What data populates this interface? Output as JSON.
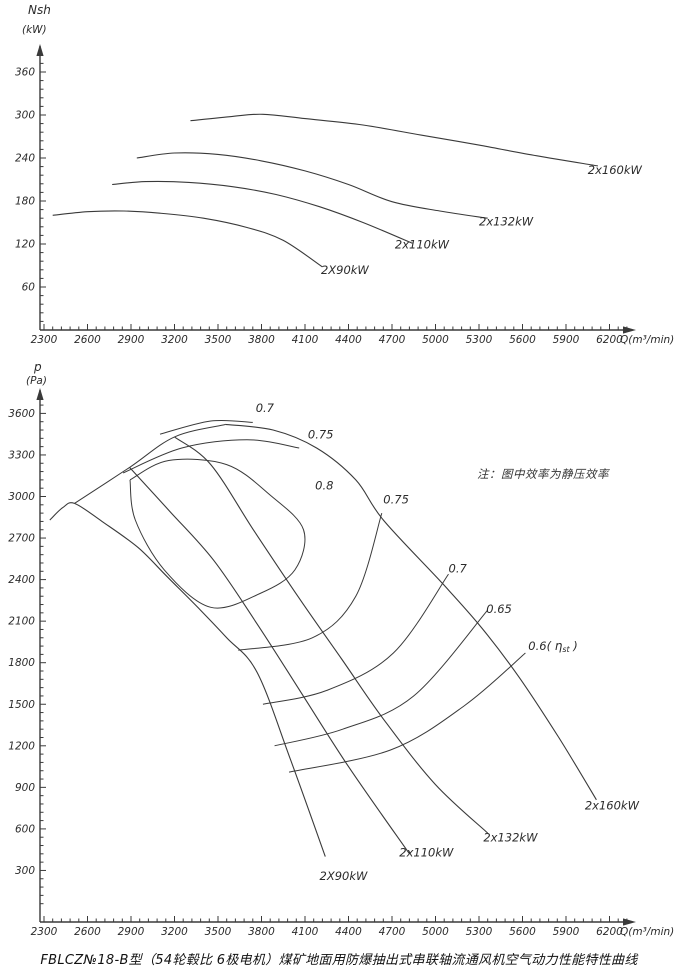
{
  "figure": {
    "caption": "FBLCZ№18-B型（54轮毂比 6极电机）煤矿地面用防爆抽出式串联轴流通风机空气动力性能特性曲线",
    "note": "注：图中效率为静压效率"
  },
  "chart_data": [
    {
      "type": "line",
      "title": "",
      "xlabel": "Q(m³/min)",
      "ylabel": "Nsh",
      "ylabel_units": "(kW)",
      "xlim": [
        2300,
        6430
      ],
      "ylim": [
        0,
        395
      ],
      "grid": false,
      "x_ticks": [
        2300,
        2600,
        2900,
        3200,
        3500,
        3800,
        4100,
        4400,
        4700,
        5000,
        5300,
        5600,
        5900,
        6200
      ],
      "x_minor_step": 60,
      "y_ticks": [
        60,
        120,
        180,
        240,
        300,
        360
      ],
      "y_minor_step": 12,
      "series": [
        {
          "name": "2X90kW",
          "label_at": [
            4210,
            78
          ],
          "points": [
            [
              2360,
              160
            ],
            [
              2600,
              165
            ],
            [
              2850,
              166
            ],
            [
              3100,
              163
            ],
            [
              3400,
              156
            ],
            [
              3700,
              143
            ],
            [
              3950,
              125
            ],
            [
              4220,
              88
            ]
          ]
        },
        {
          "name": "2x110kW",
          "label_at": [
            4720,
            114
          ],
          "points": [
            [
              2770,
              203
            ],
            [
              3000,
              207
            ],
            [
              3300,
              206
            ],
            [
              3600,
              200
            ],
            [
              3900,
              189
            ],
            [
              4200,
              172
            ],
            [
              4500,
              150
            ],
            [
              4840,
              121
            ]
          ]
        },
        {
          "name": "2x132kW",
          "label_at": [
            5300,
            146
          ],
          "points": [
            [
              2940,
              240
            ],
            [
              3200,
              247
            ],
            [
              3500,
              245
            ],
            [
              3800,
              236
            ],
            [
              4100,
              222
            ],
            [
              4400,
              203
            ],
            [
              4700,
              179
            ],
            [
              5030,
              166
            ],
            [
              5360,
              156
            ]
          ]
        },
        {
          "name": "2x160kW",
          "label_at": [
            6050,
            218
          ],
          "points": [
            [
              3310,
              292
            ],
            [
              3600,
              298
            ],
            [
              3810,
              301
            ],
            [
              4100,
              295
            ],
            [
              4500,
              286
            ],
            [
              4900,
              272
            ],
            [
              5300,
              258
            ],
            [
              5700,
              243
            ],
            [
              6120,
              229
            ]
          ]
        }
      ]
    },
    {
      "type": "line",
      "title": "",
      "xlabel": "Q(m³/min)",
      "ylabel": "p",
      "ylabel_units": "(Pa)",
      "xlim": [
        2300,
        6430
      ],
      "ylim": [
        0,
        3750
      ],
      "grid": false,
      "x_ticks": [
        2300,
        2600,
        2900,
        3200,
        3500,
        3800,
        4100,
        4400,
        4700,
        5000,
        5300,
        5600,
        5900,
        6200
      ],
      "x_minor_step": 60,
      "y_ticks": [
        300,
        600,
        900,
        1200,
        1500,
        1800,
        2100,
        2400,
        2700,
        3000,
        3300,
        3600
      ],
      "y_minor_step": 60,
      "surge_line": {
        "points": [
          [
            2510,
            2950
          ],
          [
            2890,
            3210
          ],
          [
            3200,
            3430
          ],
          [
            3550,
            3520
          ]
        ]
      },
      "series": [
        {
          "name": "2X90kW",
          "label_at": [
            4200,
            230
          ],
          "points": [
            [
              2340,
              2830
            ],
            [
              2430,
              2920
            ],
            [
              2510,
              2950
            ],
            [
              2700,
              2820
            ],
            [
              2950,
              2630
            ],
            [
              3150,
              2420
            ],
            [
              3360,
              2200
            ],
            [
              3560,
              1980
            ],
            [
              3770,
              1730
            ],
            [
              4000,
              1100
            ],
            [
              4240,
              400
            ]
          ]
        },
        {
          "name": "2x110kW",
          "label_at": [
            4750,
            400
          ],
          "points": [
            [
              2890,
              3210
            ],
            [
              3170,
              2890
            ],
            [
              3470,
              2540
            ],
            [
              3770,
              2080
            ],
            [
              4070,
              1590
            ],
            [
              4400,
              1050
            ],
            [
              4820,
              420
            ]
          ]
        },
        {
          "name": "2x132kW",
          "label_at": [
            5330,
            510
          ],
          "points": [
            [
              3200,
              3430
            ],
            [
              3450,
              3230
            ],
            [
              3750,
              2750
            ],
            [
              4050,
              2280
            ],
            [
              4350,
              1830
            ],
            [
              4650,
              1380
            ],
            [
              5000,
              920
            ],
            [
              5360,
              570
            ]
          ]
        },
        {
          "name": "2x160kW",
          "label_at": [
            6030,
            740
          ],
          "points": [
            [
              3550,
              3520
            ],
            [
              3880,
              3480
            ],
            [
              4180,
              3350
            ],
            [
              4450,
              3120
            ],
            [
              4640,
              2830
            ],
            [
              5050,
              2370
            ],
            [
              5320,
              2050
            ],
            [
              5580,
              1690
            ],
            [
              5850,
              1260
            ],
            [
              6110,
              810
            ]
          ]
        }
      ],
      "contours": [
        {
          "label": "0.7",
          "label_at": [
            3760,
            3610
          ],
          "points": [
            [
              3100,
              3450
            ],
            [
              3450,
              3545
            ],
            [
              3740,
              3535
            ]
          ]
        },
        {
          "label": "0.75",
          "label_at": [
            4120,
            3420
          ],
          "points": [
            [
              2845,
              3170
            ],
            [
              3250,
              3350
            ],
            [
              3700,
              3410
            ],
            [
              4060,
              3350
            ]
          ]
        },
        {
          "label": "0.8",
          "label_at": [
            4170,
            3050
          ],
          "points": [
            [
              2893,
              3120
            ],
            [
              3160,
              3260
            ],
            [
              3560,
              3230
            ],
            [
              3860,
              3010
            ],
            [
              4090,
              2760
            ],
            [
              4030,
              2470
            ],
            [
              3790,
              2300
            ],
            [
              3450,
              2200
            ],
            [
              3130,
              2470
            ],
            [
              2930,
              2830
            ],
            [
              2893,
              3120
            ]
          ]
        },
        {
          "label": "0.75",
          "label_at": [
            4640,
            2950
          ],
          "points": [
            [
              3640,
              1890
            ],
            [
              4150,
              1980
            ],
            [
              4450,
              2280
            ],
            [
              4630,
              2880
            ]
          ]
        },
        {
          "label": "0.7",
          "label_at": [
            5090,
            2450
          ],
          "points": [
            [
              3810,
              1500
            ],
            [
              4250,
              1600
            ],
            [
              4710,
              1870
            ],
            [
              5090,
              2440
            ]
          ]
        },
        {
          "label": "0.65",
          "label_at": [
            5350,
            2160
          ],
          "points": [
            [
              3890,
              1200
            ],
            [
              4360,
              1320
            ],
            [
              4850,
              1560
            ],
            [
              5360,
              2180
            ]
          ]
        },
        {
          "label": "0.6(ηst)",
          "label_at": [
            5640,
            1890
          ],
          "points": [
            [
              3990,
              1010
            ],
            [
              4690,
              1170
            ],
            [
              5200,
              1490
            ],
            [
              5620,
              1870
            ]
          ]
        }
      ]
    }
  ]
}
